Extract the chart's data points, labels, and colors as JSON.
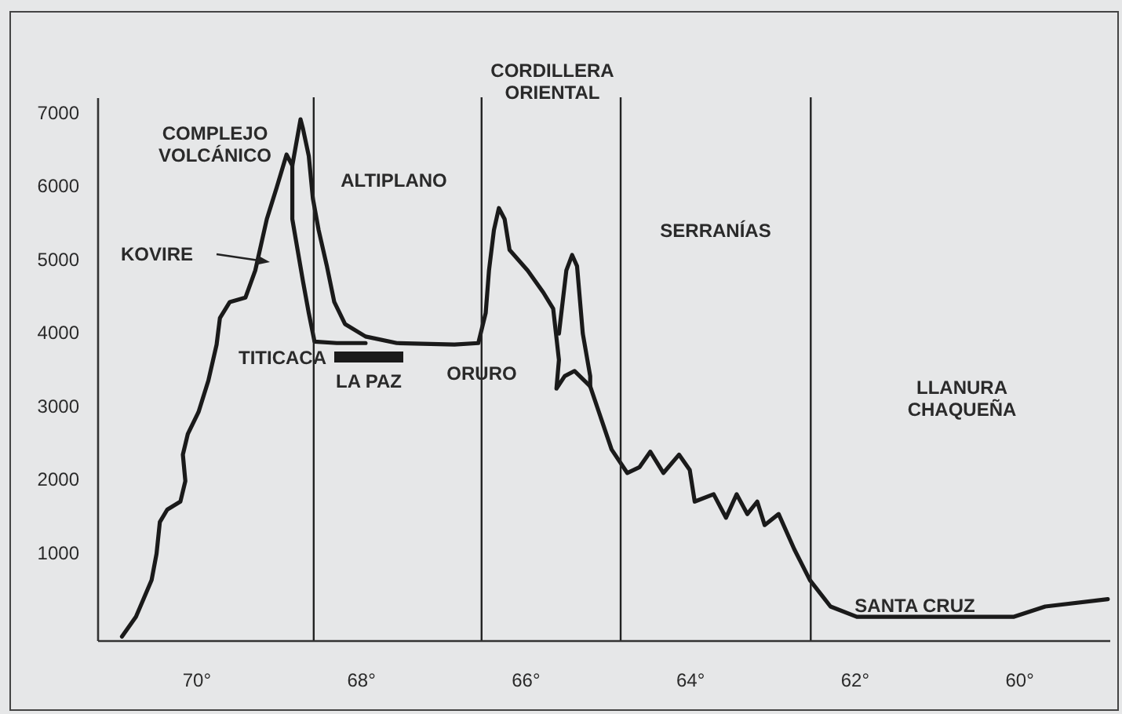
{
  "chart_data": {
    "type": "line",
    "series": [
      {
        "color": "#1a1a1a",
        "x": [
          70.9,
          70.73,
          70.54,
          70.48,
          70.44,
          70.35,
          70.19,
          70.13,
          70.16,
          70.1,
          69.97,
          69.85,
          69.75,
          69.71,
          69.59,
          69.4,
          69.28,
          69.14,
          69.02,
          68.9,
          68.83,
          68.73,
          68.7,
          68.63,
          68.58,
          68.51,
          68.41,
          68.32,
          68.19,
          67.94,
          67.56,
          66.86,
          66.57,
          66.48,
          66.44,
          66.38,
          66.32,
          66.25,
          66.19,
          65.97,
          65.78,
          65.66,
          65.59,
          65.62,
          65.52,
          65.4,
          65.21,
          64.95,
          64.76,
          64.61,
          64.48,
          64.32,
          64.13,
          64.0,
          63.94,
          63.71,
          63.56,
          63.43,
          63.3,
          63.18,
          63.09,
          62.92,
          62.73,
          62.54,
          62.29,
          61.97,
          61.59,
          60.06,
          59.68,
          58.92
        ],
        "values": [
          -150,
          120,
          620,
          980,
          1410,
          1580,
          1690,
          1970,
          2330,
          2610,
          2910,
          3340,
          3830,
          4190,
          4410,
          4470,
          4840,
          5540,
          5970,
          6420,
          6270,
          6900,
          6770,
          6400,
          5820,
          5390,
          4900,
          4410,
          4110,
          3940,
          3850,
          3830,
          3850,
          4260,
          4840,
          5390,
          5690,
          5540,
          5120,
          4840,
          4540,
          4320,
          3620,
          3230,
          3400,
          3470,
          3260,
          2400,
          2080,
          2160,
          2370,
          2080,
          2330,
          2120,
          1690,
          1790,
          1470,
          1790,
          1520,
          1690,
          1370,
          1520,
          1040,
          620,
          260,
          120,
          120,
          120,
          260,
          360
        ]
      },
      {
        "color": "#1a1a1a",
        "x": [
          68.83,
          68.83,
          68.7,
          68.63,
          68.58,
          68.56,
          68.29,
          67.94
        ],
        "values": [
          6270,
          5540,
          4690,
          4260,
          3980,
          3870,
          3850,
          3850
        ]
      },
      {
        "color": "#1a1a1a",
        "x": [
          65.59,
          65.5,
          65.43,
          65.37,
          65.3,
          65.21,
          65.21
        ],
        "values": [
          3980,
          4840,
          5050,
          4900,
          3980,
          3400,
          3260
        ]
      }
    ],
    "xlim": [
      71.2,
      58.9
    ],
    "xticks": [
      {
        "value": 70,
        "label": "70°"
      },
      {
        "value": 68,
        "label": "68°"
      },
      {
        "value": 66,
        "label": "66°"
      },
      {
        "value": 64,
        "label": "64°"
      },
      {
        "value": 62,
        "label": "62°"
      },
      {
        "value": 60,
        "label": "60°"
      }
    ],
    "ylim": [
      -200,
      7200
    ],
    "yticks": [
      1000,
      2000,
      3000,
      4000,
      5000,
      6000,
      7000
    ],
    "ref_lines": [
      {
        "axis": "x",
        "value": 68.57
      },
      {
        "axis": "x",
        "value": 66.53
      },
      {
        "axis": "x",
        "value": 64.84
      },
      {
        "axis": "x",
        "value": 62.53
      }
    ],
    "annotations": [
      "COMPLEJO\nVOLCÁNICO",
      "ALTIPLANO",
      "CORDILLERA\nORIENTAL",
      "SERRANÍAS",
      "LLANURA\nCHAQUEÑA",
      "KOVIRE",
      "TITICACA",
      "LA PAZ",
      "ORURO",
      "SANTA CRUZ"
    ]
  }
}
